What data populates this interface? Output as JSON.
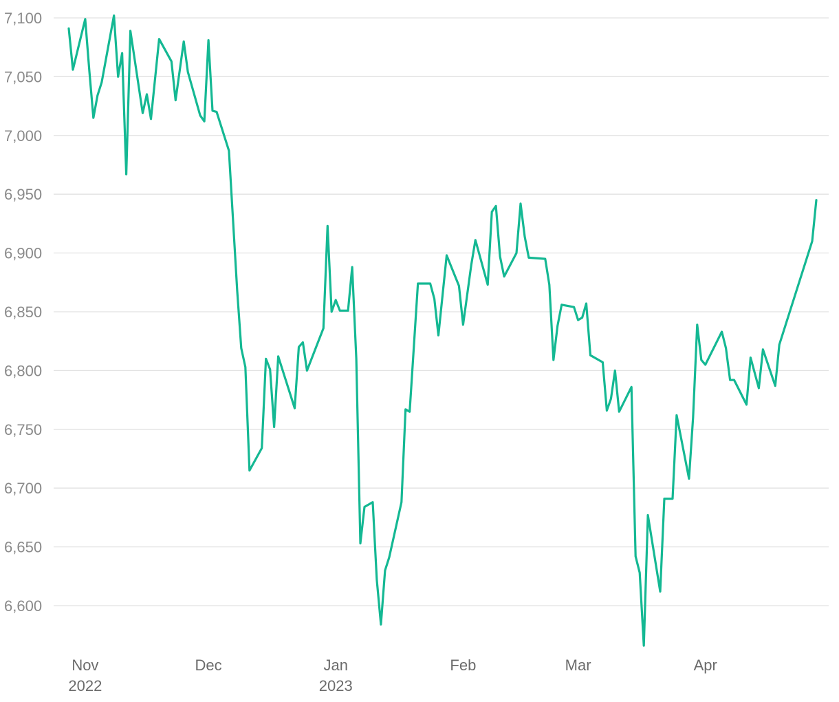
{
  "chart_data": {
    "type": "line",
    "ylim": [
      6565,
      7105
    ],
    "y_ticks": [
      7100,
      7050,
      7000,
      6950,
      6900,
      6850,
      6800,
      6750,
      6700,
      6650,
      6600
    ],
    "y_tick_labels": [
      "7,100",
      "7,050",
      "7,000",
      "6,950",
      "6,900",
      "6,850",
      "6,800",
      "6,750",
      "6,700",
      "6,650",
      "6,600"
    ],
    "x_start": "2022-10-28",
    "x_end": "2023-04-28",
    "x_ticks": [
      {
        "date": "2022-11-01",
        "label": "Nov",
        "sublabel": "2022"
      },
      {
        "date": "2022-12-01",
        "label": "Dec",
        "sublabel": ""
      },
      {
        "date": "2023-01-01",
        "label": "Jan",
        "sublabel": "2023"
      },
      {
        "date": "2023-02-01",
        "label": "Feb",
        "sublabel": ""
      },
      {
        "date": "2023-03-01",
        "label": "Mar",
        "sublabel": ""
      },
      {
        "date": "2023-04-01",
        "label": "Apr",
        "sublabel": ""
      }
    ],
    "grid": true,
    "series": [
      {
        "color": "#14b893",
        "points": [
          [
            "2022-10-28",
            7091
          ],
          [
            "2022-10-29",
            7056
          ],
          [
            "2022-11-01",
            7099
          ],
          [
            "2022-11-02",
            7055
          ],
          [
            "2022-11-03",
            7015
          ],
          [
            "2022-11-04",
            7034
          ],
          [
            "2022-11-05",
            7045
          ],
          [
            "2022-11-08",
            7102
          ],
          [
            "2022-11-09",
            7050
          ],
          [
            "2022-11-10",
            7070
          ],
          [
            "2022-11-11",
            6967
          ],
          [
            "2022-11-12",
            7089
          ],
          [
            "2022-11-15",
            7019
          ],
          [
            "2022-11-16",
            7035
          ],
          [
            "2022-11-17",
            7014
          ],
          [
            "2022-11-19",
            7082
          ],
          [
            "2022-11-22",
            7063
          ],
          [
            "2022-11-23",
            7030
          ],
          [
            "2022-11-25",
            7080
          ],
          [
            "2022-11-26",
            7054
          ],
          [
            "2022-11-29",
            7017
          ],
          [
            "2022-11-30",
            7012
          ],
          [
            "2022-12-01",
            7081
          ],
          [
            "2022-12-02",
            7021
          ],
          [
            "2022-12-03",
            7020
          ],
          [
            "2022-12-06",
            6987
          ],
          [
            "2022-12-08",
            6868
          ],
          [
            "2022-12-09",
            6819
          ],
          [
            "2022-12-10",
            6803
          ],
          [
            "2022-12-11",
            6715
          ],
          [
            "2022-12-14",
            6734
          ],
          [
            "2022-12-15",
            6810
          ],
          [
            "2022-12-16",
            6801
          ],
          [
            "2022-12-17",
            6752
          ],
          [
            "2022-12-18",
            6812
          ],
          [
            "2022-12-22",
            6768
          ],
          [
            "2022-12-23",
            6820
          ],
          [
            "2022-12-24",
            6824
          ],
          [
            "2022-12-25",
            6800
          ],
          [
            "2022-12-29",
            6836
          ],
          [
            "2022-12-30",
            6923
          ],
          [
            "2022-12-31",
            6850
          ],
          [
            "2023-01-01",
            6860
          ],
          [
            "2023-01-02",
            6851
          ],
          [
            "2023-01-04",
            6851
          ],
          [
            "2023-01-05",
            6888
          ],
          [
            "2023-01-06",
            6810
          ],
          [
            "2023-01-07",
            6653
          ],
          [
            "2023-01-08",
            6684
          ],
          [
            "2023-01-10",
            6688
          ],
          [
            "2023-01-11",
            6622
          ],
          [
            "2023-01-12",
            6584
          ],
          [
            "2023-01-13",
            6630
          ],
          [
            "2023-01-14",
            6641
          ],
          [
            "2023-01-17",
            6688
          ],
          [
            "2023-01-18",
            6767
          ],
          [
            "2023-01-19",
            6765
          ],
          [
            "2023-01-21",
            6874
          ],
          [
            "2023-01-24",
            6874
          ],
          [
            "2023-01-25",
            6861
          ],
          [
            "2023-01-26",
            6830
          ],
          [
            "2023-01-28",
            6898
          ],
          [
            "2023-01-31",
            6872
          ],
          [
            "2023-02-01",
            6839
          ],
          [
            "2023-02-03",
            6890
          ],
          [
            "2023-02-04",
            6911
          ],
          [
            "2023-02-07",
            6873
          ],
          [
            "2023-02-08",
            6935
          ],
          [
            "2023-02-09",
            6940
          ],
          [
            "2023-02-10",
            6897
          ],
          [
            "2023-02-11",
            6880
          ],
          [
            "2023-02-14",
            6900
          ],
          [
            "2023-02-15",
            6942
          ],
          [
            "2023-02-16",
            6914
          ],
          [
            "2023-02-17",
            6896
          ],
          [
            "2023-02-21",
            6895
          ],
          [
            "2023-02-22",
            6873
          ],
          [
            "2023-02-23",
            6809
          ],
          [
            "2023-02-24",
            6838
          ],
          [
            "2023-02-25",
            6856
          ],
          [
            "2023-02-28",
            6854
          ],
          [
            "2023-03-01",
            6843
          ],
          [
            "2023-03-02",
            6845
          ],
          [
            "2023-03-03",
            6857
          ],
          [
            "2023-03-04",
            6813
          ],
          [
            "2023-03-07",
            6807
          ],
          [
            "2023-03-08",
            6766
          ],
          [
            "2023-03-09",
            6776
          ],
          [
            "2023-03-10",
            6800
          ],
          [
            "2023-03-11",
            6765
          ],
          [
            "2023-03-14",
            6786
          ],
          [
            "2023-03-15",
            6642
          ],
          [
            "2023-03-16",
            6628
          ],
          [
            "2023-03-17",
            6566
          ],
          [
            "2023-03-18",
            6677
          ],
          [
            "2023-03-21",
            6612
          ],
          [
            "2023-03-22",
            6691
          ],
          [
            "2023-03-24",
            6691
          ],
          [
            "2023-03-25",
            6762
          ],
          [
            "2023-03-28",
            6708
          ],
          [
            "2023-03-29",
            6760
          ],
          [
            "2023-03-30",
            6839
          ],
          [
            "2023-03-31",
            6809
          ],
          [
            "2023-04-01",
            6805
          ],
          [
            "2023-04-05",
            6833
          ],
          [
            "2023-04-06",
            6819
          ],
          [
            "2023-04-07",
            6792
          ],
          [
            "2023-04-08",
            6792
          ],
          [
            "2023-04-11",
            6771
          ],
          [
            "2023-04-12",
            6811
          ],
          [
            "2023-04-14",
            6785
          ],
          [
            "2023-04-15",
            6818
          ],
          [
            "2023-04-18",
            6787
          ],
          [
            "2023-04-19",
            6822
          ],
          [
            "2023-04-27",
            6910
          ],
          [
            "2023-04-28",
            6945
          ]
        ]
      }
    ]
  }
}
